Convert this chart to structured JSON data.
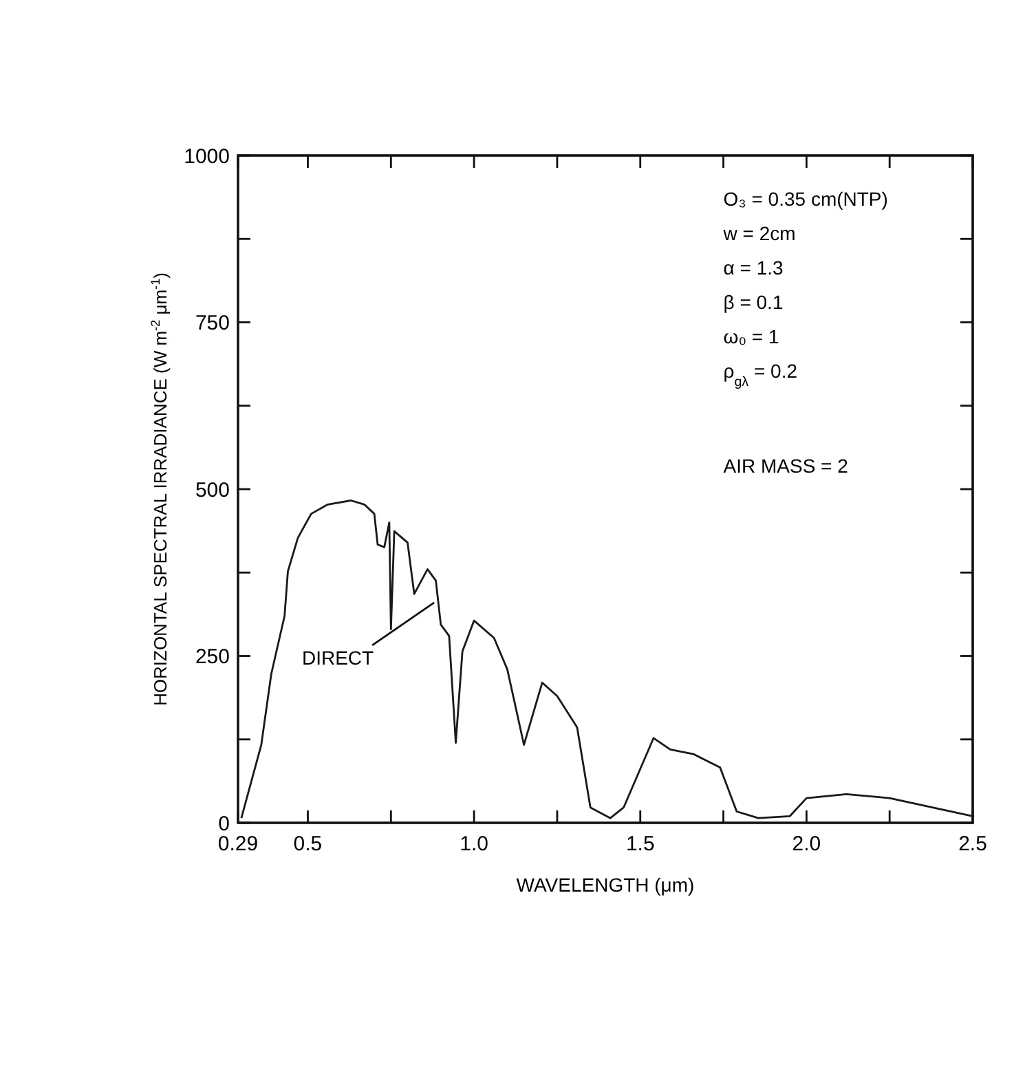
{
  "chart_data": {
    "type": "line",
    "xlabel": "WAVELENGTH (μm)",
    "ylabel": "HORIZONTAL SPECTRAL IRRADIANCE (W m$^{-2}$ μm$^{-1}$)",
    "xlim": [
      0.29,
      2.5
    ],
    "ylim": [
      0,
      1000
    ],
    "xticks": [
      0.29,
      0.5,
      {
        "value": 0.75,
        "label": null
      },
      "1.0",
      1.5,
      "2.0",
      {
        "value": 1.25,
        "label": null
      },
      {
        "value": 1.75,
        "label": null
      },
      {
        "value": 2.25,
        "label": null
      },
      2.5
    ],
    "yticks": [
      0,
      {
        "value": 125,
        "label": null
      },
      250,
      {
        "value": 375,
        "label": null
      },
      500,
      {
        "value": 625,
        "label": null
      },
      750,
      {
        "value": 875,
        "label": null
      },
      1000
    ],
    "grid": false,
    "marker": "none",
    "line_style": "solid",
    "series": [
      {
        "color": "#1a1a1a",
        "x": [
          0.3,
          0.36,
          0.39,
          0.43,
          0.44,
          0.47,
          0.51,
          0.56,
          0.63,
          0.67,
          0.7,
          0.71,
          0.73,
          0.745,
          0.75,
          0.76,
          0.8,
          0.82,
          0.86,
          0.885,
          0.9,
          0.925,
          0.945,
          0.965,
          1.0,
          1.06,
          1.1,
          1.15,
          1.205,
          1.25,
          1.31,
          1.35,
          1.41,
          1.45,
          1.54,
          1.59,
          1.66,
          1.74,
          1.79,
          1.855,
          1.95,
          2.0,
          2.12,
          2.25,
          2.5
        ],
        "values": [
          7,
          117,
          223,
          310,
          377,
          427,
          463,
          477,
          483,
          477,
          463,
          417,
          413,
          450,
          290,
          437,
          420,
          343,
          380,
          363,
          297,
          280,
          120,
          257,
          303,
          277,
          230,
          117,
          210,
          190,
          143,
          23,
          7,
          23,
          127,
          110,
          103,
          83,
          17,
          7,
          10,
          37,
          43,
          37,
          10
        ]
      }
    ],
    "annotations": [
      {
        "text": "DIRECT",
        "x": 0.88,
        "y": 330
      },
      "O₃ = 0.35 cm(NTP)",
      "w = 2cm",
      "α = 1.3",
      "β = 0.1",
      "ω₀ = 1",
      "ρ$_{gλ}$ = 0.2",
      "AIR MASS = 2"
    ]
  }
}
